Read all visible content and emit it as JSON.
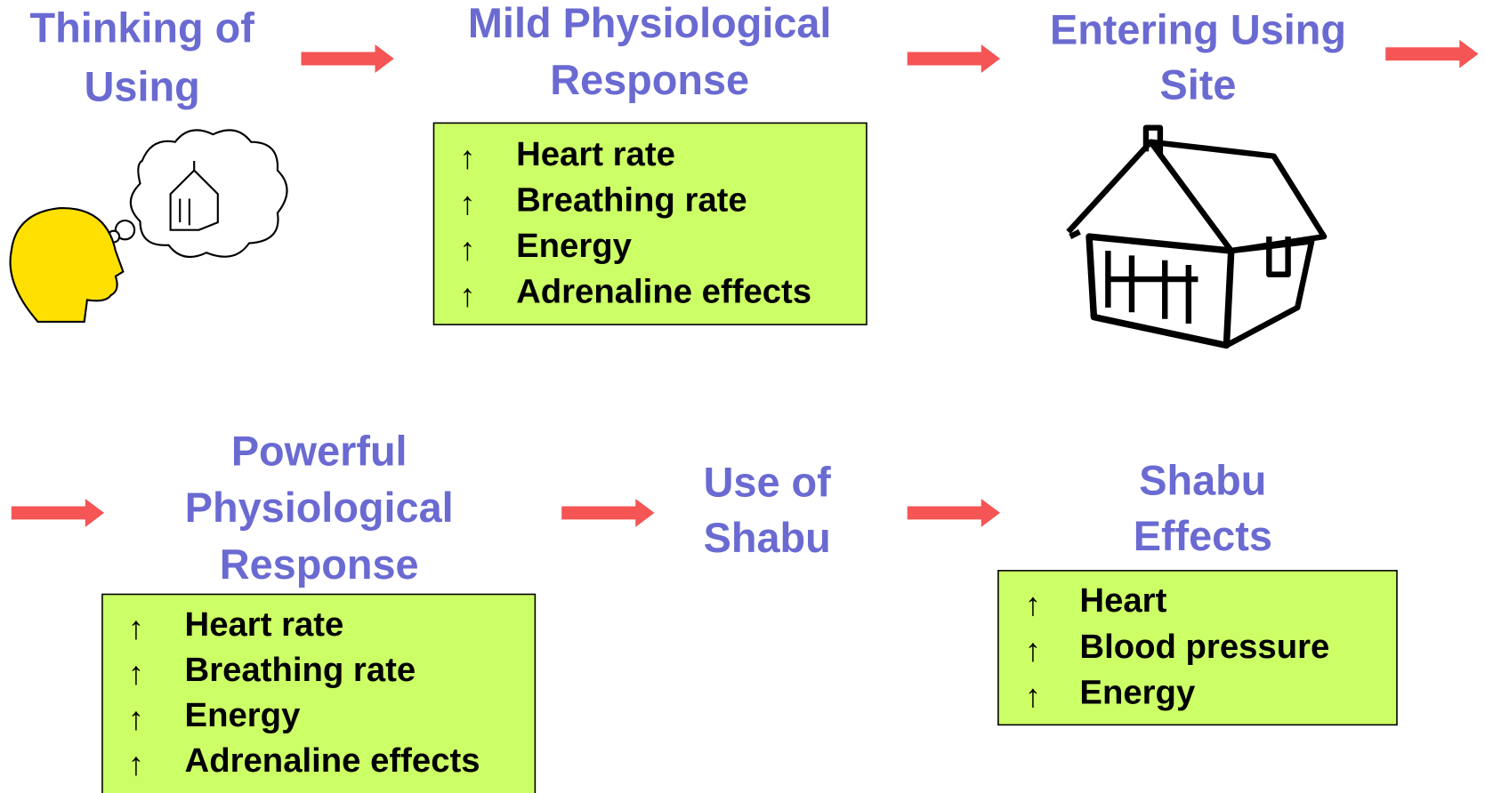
{
  "stages": [
    {
      "title": [
        "Thinking of",
        "Using"
      ]
    },
    {
      "title": [
        "Mild Physiological",
        "Response"
      ],
      "bullet": "↑",
      "items": [
        "Heart rate",
        "Breathing rate",
        "Energy",
        "Adrenaline effects"
      ]
    },
    {
      "title": [
        "Entering Using",
        "Site"
      ]
    },
    {
      "title": [
        "Powerful",
        "Physiological",
        "Response"
      ],
      "bullet": "↑",
      "items": [
        "Heart rate",
        "Breathing rate",
        "Energy",
        "Adrenaline effects"
      ]
    },
    {
      "title": [
        "Use of",
        "Shabu"
      ]
    },
    {
      "title": [
        "Shabu",
        "Effects"
      ],
      "bullet": "↑",
      "items": [
        "Heart",
        "Blood pressure",
        "Energy"
      ]
    }
  ]
}
